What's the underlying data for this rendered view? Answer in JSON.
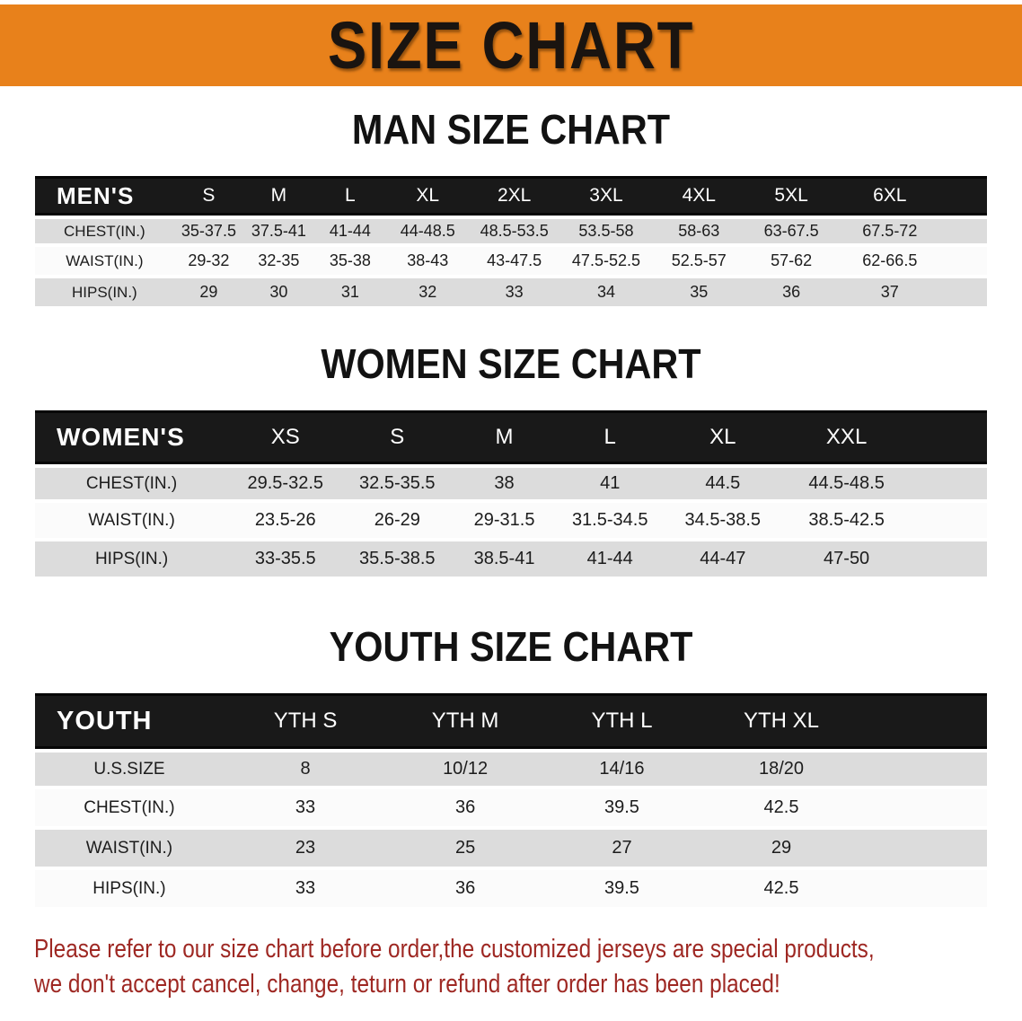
{
  "banner": {
    "title": "SIZE CHART"
  },
  "sections": [
    {
      "heading": "MAN SIZE CHART",
      "table": {
        "header_label": "MEN'S",
        "columns": [
          "S",
          "M",
          "L",
          "XL",
          "2XL",
          "3XL",
          "4XL",
          "5XL",
          "6XL"
        ],
        "rows": [
          {
            "label": "CHEST(IN.)",
            "values": [
              "35-37.5",
              "37.5-41",
              "41-44",
              "44-48.5",
              "48.5-53.5",
              "53.5-58",
              "58-63",
              "63-67.5",
              "67.5-72"
            ]
          },
          {
            "label": "WAIST(IN.)",
            "values": [
              "29-32",
              "32-35",
              "35-38",
              "38-43",
              "43-47.5",
              "47.5-52.5",
              "52.5-57",
              "57-62",
              "62-66.5"
            ]
          },
          {
            "label": "HIPS(IN.)",
            "values": [
              "29",
              "30",
              "31",
              "32",
              "33",
              "34",
              "35",
              "36",
              "37"
            ]
          }
        ]
      }
    },
    {
      "heading": "WOMEN SIZE CHART",
      "table": {
        "header_label": "WOMEN'S",
        "columns": [
          "XS",
          "S",
          "M",
          "L",
          "XL",
          "XXL"
        ],
        "rows": [
          {
            "label": "CHEST(IN.)",
            "values": [
              "29.5-32.5",
              "32.5-35.5",
              "38",
              "41",
              "44.5",
              "44.5-48.5"
            ]
          },
          {
            "label": "WAIST(IN.)",
            "values": [
              "23.5-26",
              "26-29",
              "29-31.5",
              "31.5-34.5",
              "34.5-38.5",
              "38.5-42.5"
            ]
          },
          {
            "label": "HIPS(IN.)",
            "values": [
              "33-35.5",
              "35.5-38.5",
              "38.5-41",
              "41-44",
              "44-47",
              "47-50"
            ]
          }
        ]
      }
    },
    {
      "heading": "YOUTH SIZE CHART",
      "table": {
        "header_label": "YOUTH",
        "columns": [
          "YTH S",
          "YTH M",
          "YTH L",
          "YTH XL"
        ],
        "rows": [
          {
            "label": "U.S.SIZE",
            "values": [
              "8",
              "10/12",
              "14/16",
              "18/20"
            ]
          },
          {
            "label": "CHEST(IN.)",
            "values": [
              "33",
              "36",
              "39.5",
              "42.5"
            ]
          },
          {
            "label": "WAIST(IN.)",
            "values": [
              "23",
              "25",
              "27",
              "29"
            ]
          },
          {
            "label": "HIPS(IN.)",
            "values": [
              "33",
              "36",
              "39.5",
              "42.5"
            ]
          }
        ]
      }
    }
  ],
  "disclaimer": {
    "line1": "Please refer to our size chart before order,the customized jerseys are special products,",
    "line2": "we don't accept cancel, change, teturn or refund after order has been placed!"
  },
  "colors": {
    "banner_bg": "#E8811B",
    "banner_text": "#1A1410",
    "header_bar": "#191919",
    "header_text": "#FFFFFF",
    "row_gray": "#DCDCDC",
    "row_white": "#FBFBFB",
    "body_text": "#1C1C1C",
    "disclaimer": "#9E2823"
  }
}
